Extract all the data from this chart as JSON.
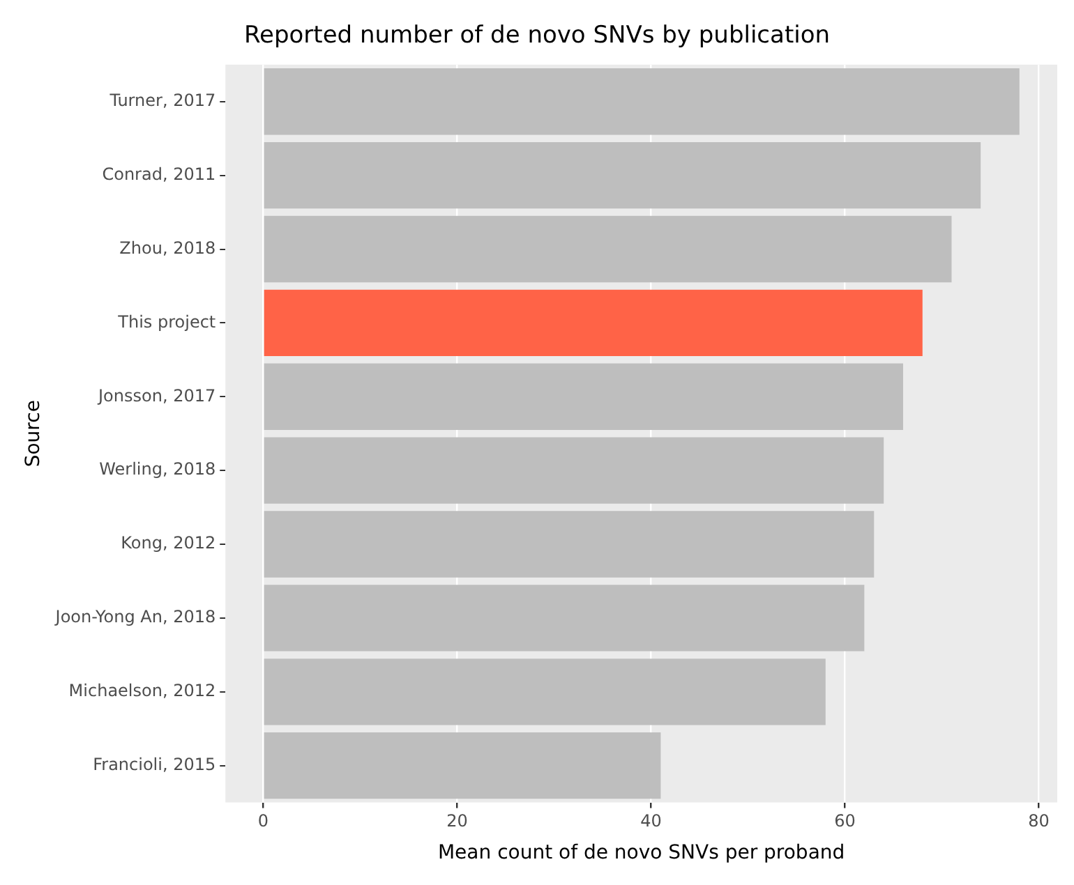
{
  "chart_data": {
    "type": "bar",
    "orientation": "horizontal",
    "title": "Reported number of de novo SNVs by publication",
    "xlabel": "Mean count of de novo SNVs per proband",
    "ylabel": "Source",
    "categories": [
      "Turner, 2017",
      "Conrad, 2011",
      "Zhou, 2018",
      "This project",
      "Jonsson, 2017",
      "Werling, 2018",
      "Kong, 2012",
      "Joon-Yong An, 2018",
      "Michaelson, 2012",
      "Francioli, 2015"
    ],
    "values": [
      78,
      74,
      71,
      68,
      66,
      64,
      63,
      62,
      58,
      41
    ],
    "colors": [
      "#bebebe",
      "#bebebe",
      "#bebebe",
      "#ff6347",
      "#bebebe",
      "#bebebe",
      "#bebebe",
      "#bebebe",
      "#bebebe",
      "#bebebe"
    ],
    "xlim": [
      -3.9,
      81.9
    ],
    "xticks": [
      0,
      20,
      40,
      60,
      80
    ],
    "grid": "x",
    "legend": false
  }
}
